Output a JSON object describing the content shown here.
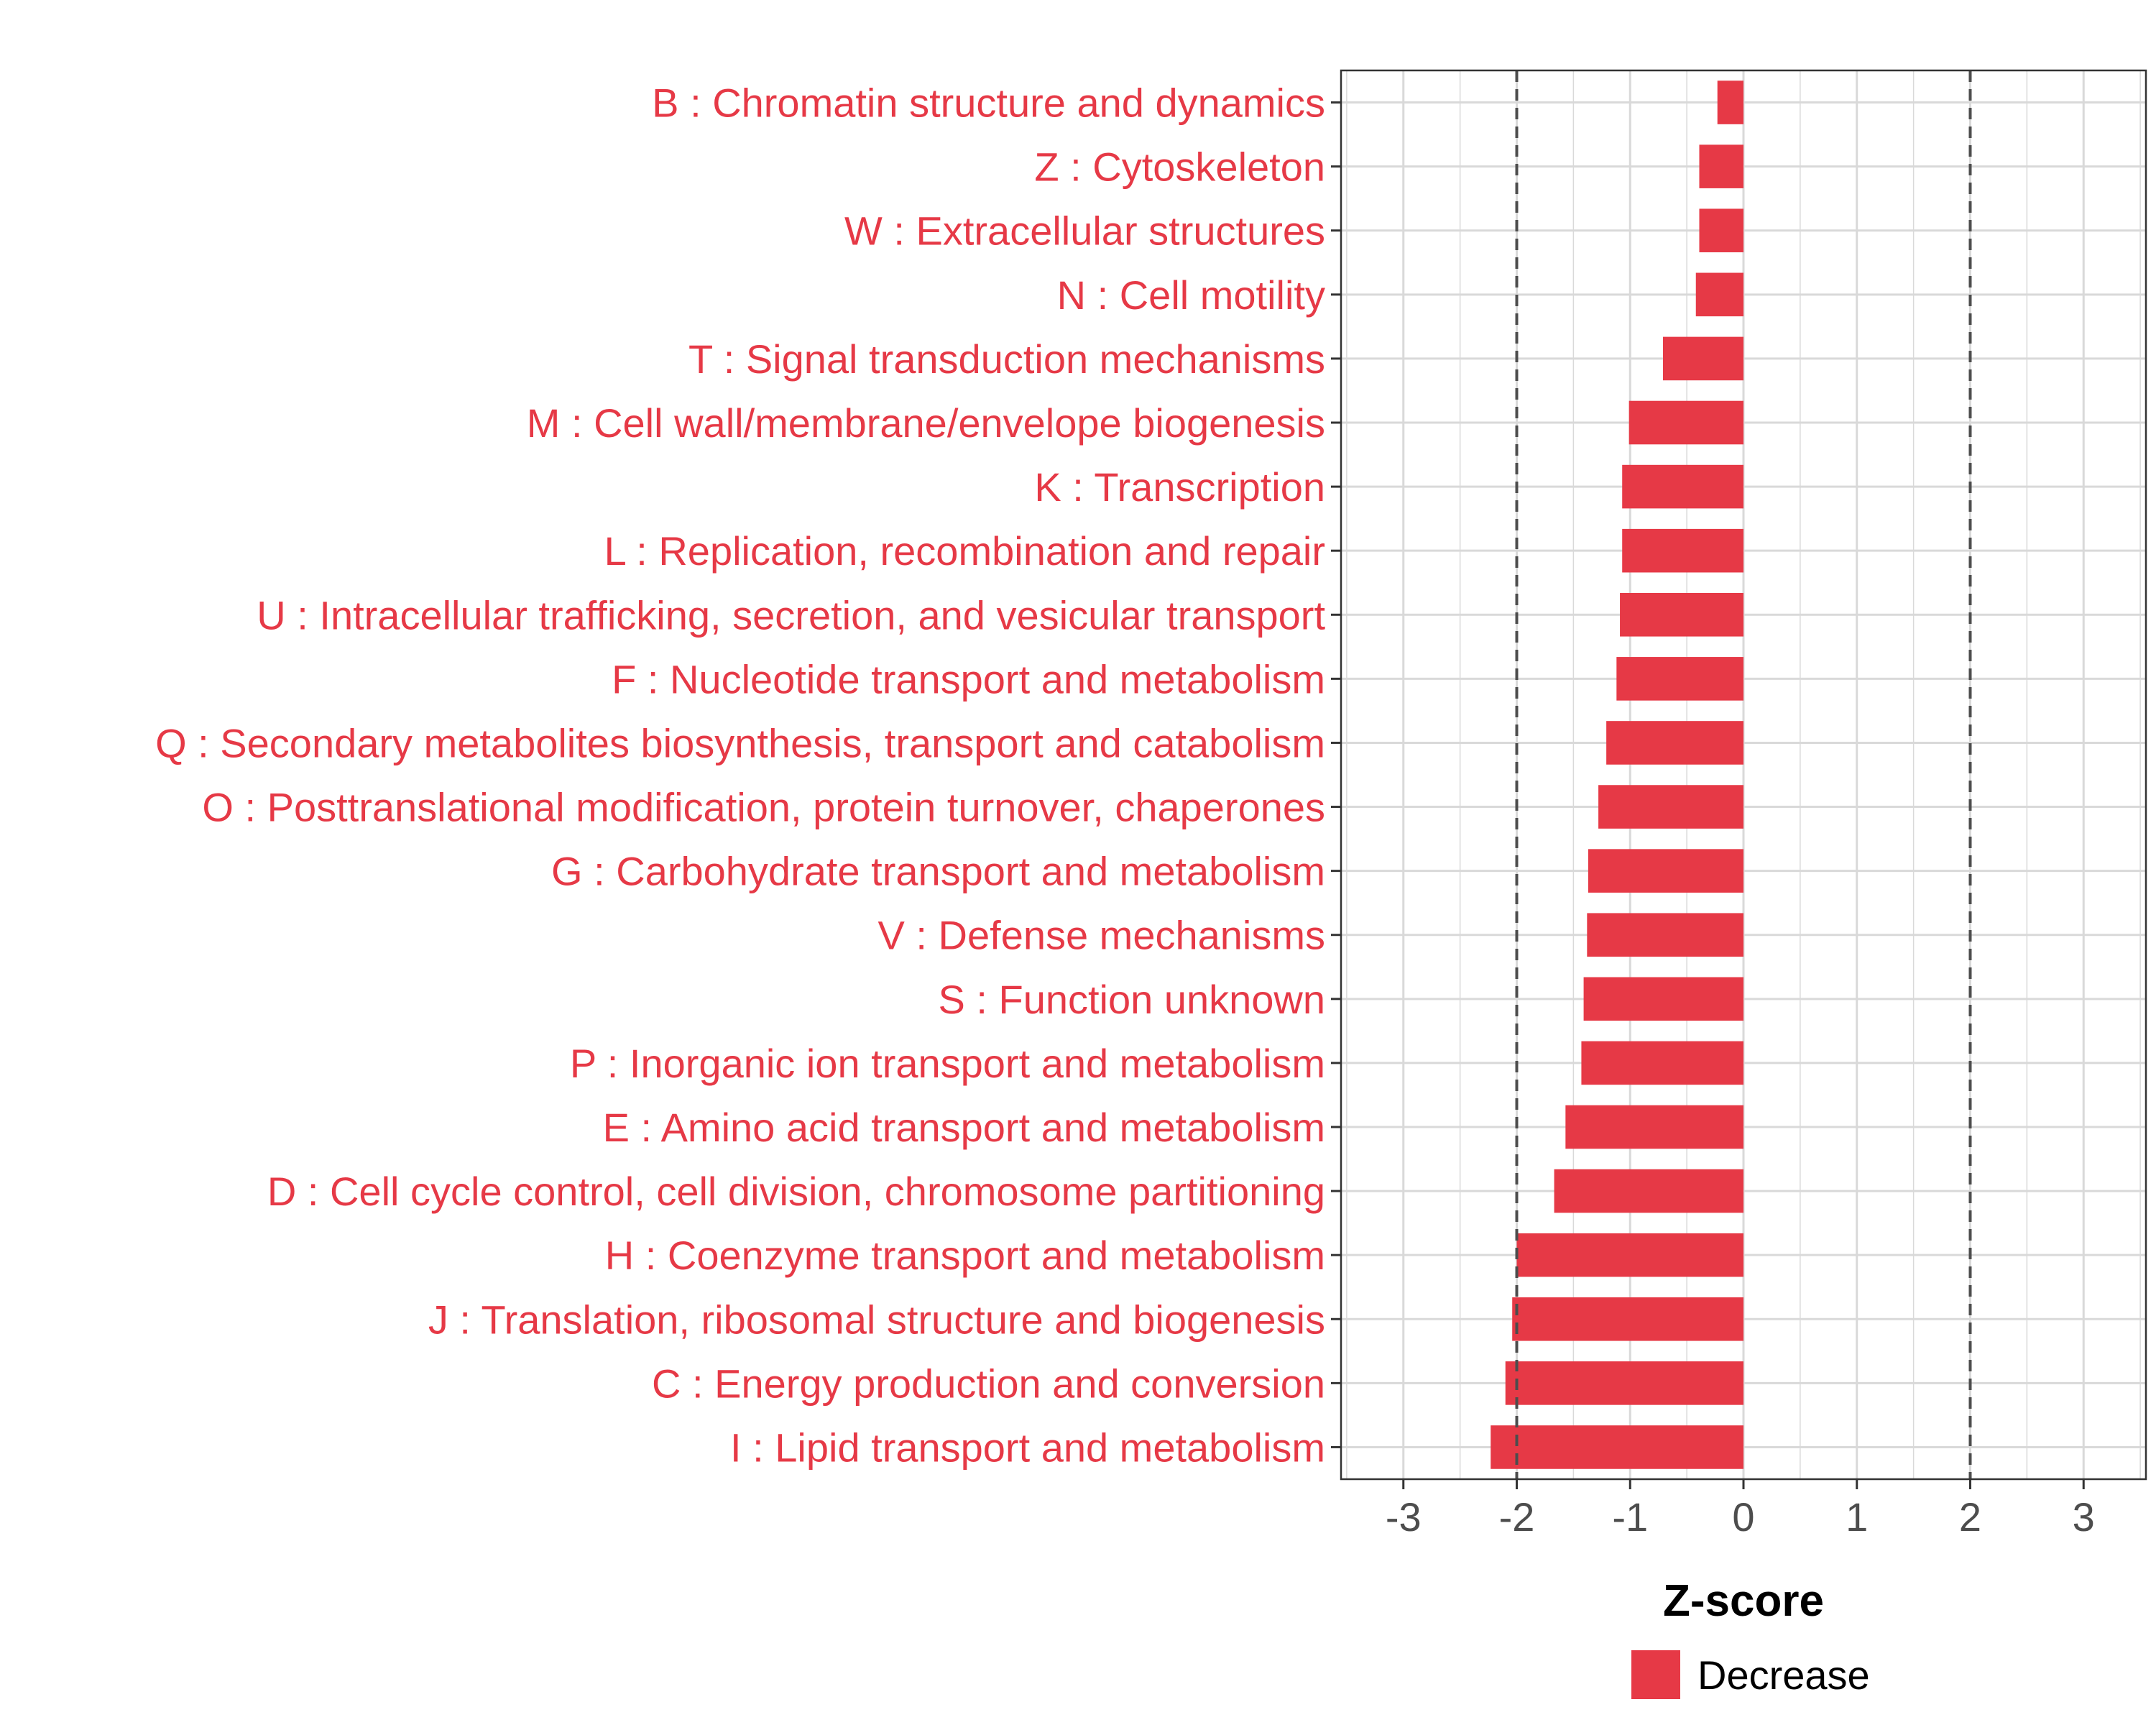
{
  "chart_data": {
    "type": "bar",
    "orientation": "horizontal",
    "title": "",
    "xlabel": "Z-score",
    "ylabel": "",
    "xlim": [
      -3.55,
      3.55
    ],
    "x_ticks": [
      "-3",
      "-2",
      "-1",
      "0",
      "1",
      "2",
      "3"
    ],
    "x_tick_values": [
      -3,
      -2,
      -1,
      0,
      1,
      2,
      3
    ],
    "reference_lines": [
      -2,
      2
    ],
    "grid": true,
    "categories": [
      "B : Chromatin structure and dynamics",
      "Z : Cytoskeleton",
      "W : Extracellular structures",
      "N : Cell motility",
      "T : Signal transduction mechanisms",
      "M : Cell wall/membrane/envelope biogenesis",
      "K : Transcription",
      "L : Replication, recombination and repair",
      "U : Intracellular trafficking, secretion, and vesicular transport",
      "F : Nucleotide transport and metabolism",
      "Q : Secondary metabolites biosynthesis, transport and catabolism",
      "O : Posttranslational modification, protein turnover, chaperones",
      "G : Carbohydrate transport and metabolism",
      "V : Defense mechanisms",
      "S : Function unknown",
      "P : Inorganic ion transport and metabolism",
      "E : Amino acid transport and metabolism",
      "D : Cell cycle control, cell division, chromosome partitioning",
      "H : Coenzyme transport and metabolism",
      "J : Translation, ribosomal structure and biogenesis",
      "C : Energy production and conversion",
      "I : Lipid transport and metabolism"
    ],
    "values": [
      -0.23,
      -0.39,
      -0.39,
      -0.42,
      -0.71,
      -1.01,
      -1.07,
      -1.07,
      -1.09,
      -1.12,
      -1.21,
      -1.28,
      -1.37,
      -1.38,
      -1.41,
      -1.43,
      -1.57,
      -1.67,
      -2.0,
      -2.04,
      -2.1,
      -2.23
    ],
    "series": [
      {
        "name": "Decrease",
        "color": "#E63946"
      }
    ],
    "legend_position": "bottom"
  },
  "colors": {
    "bar": "#E63946",
    "label": "#E63946",
    "grid": "#D9D9D9",
    "axis_text": "#4D4D4D",
    "refline": "#4D4D4D"
  }
}
